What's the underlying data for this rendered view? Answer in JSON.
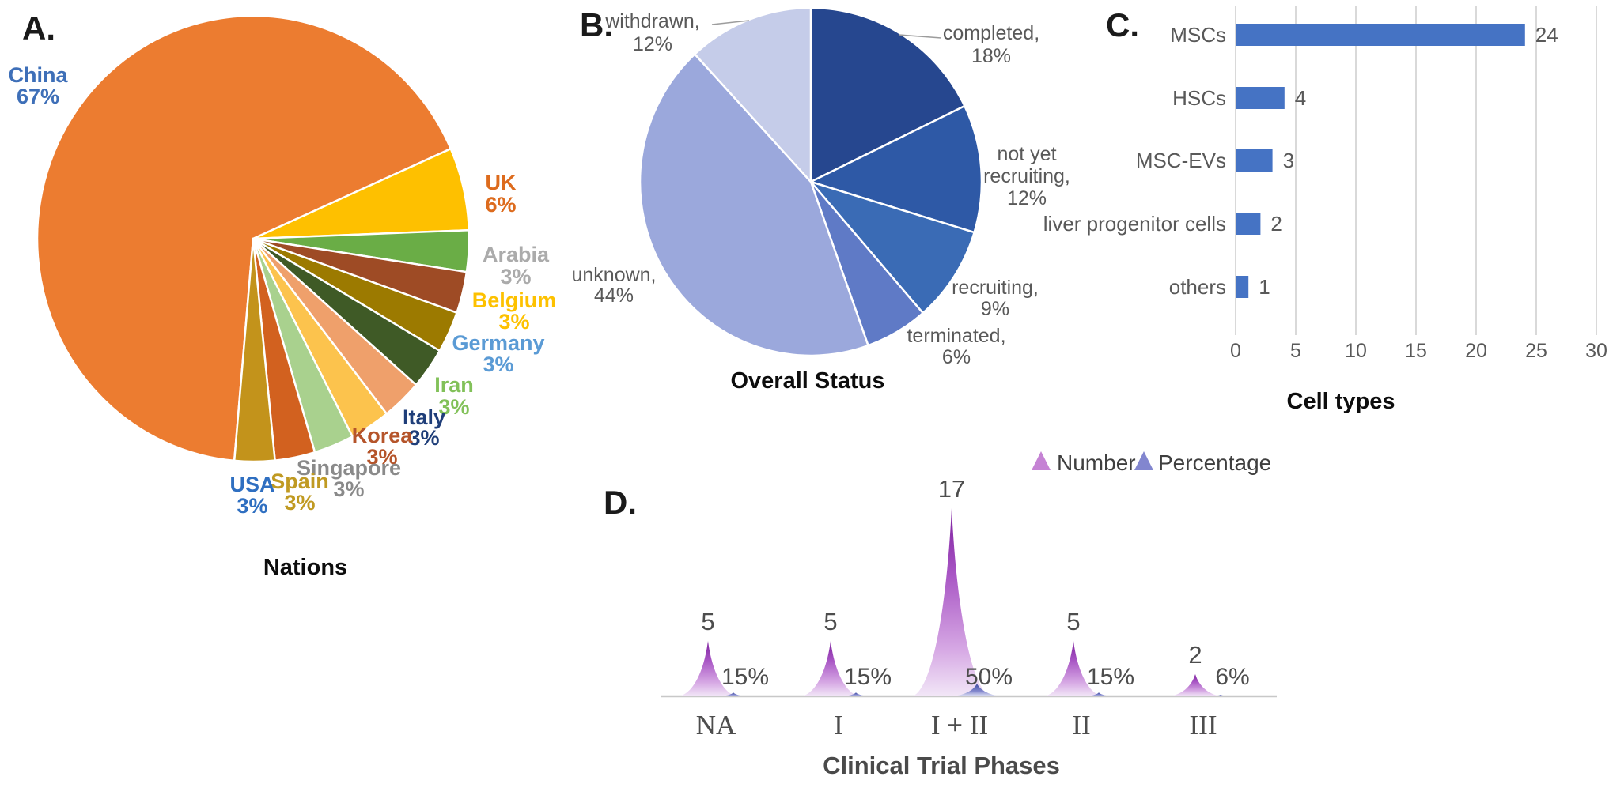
{
  "panels": {
    "a": "A.",
    "b": "B.",
    "c": "C.",
    "d": "D."
  },
  "chart_data": [
    {
      "id": "nations_pie",
      "type": "pie",
      "title": "Nations",
      "start_angle_deg": 185,
      "legend_position": "around-slices",
      "slices": [
        {
          "label": "China",
          "value": 67,
          "pct_text": "67%",
          "color": "#EC7C30",
          "label_color": "#3E6FB8"
        },
        {
          "label": "UK",
          "value": 6,
          "pct_text": "6%",
          "color": "#FEC000",
          "label_color": "#DD6B1D"
        },
        {
          "label": "Arabia",
          "value": 3,
          "pct_text": "3%",
          "color": "#6AAD46",
          "label_color": "#ABABAB"
        },
        {
          "label": "Belgium",
          "value": 3,
          "pct_text": "3%",
          "color": "#9E4B25",
          "label_color": "#FDC100"
        },
        {
          "label": "Germany",
          "value": 3,
          "pct_text": "3%",
          "color": "#9C7A00",
          "label_color": "#5B9BD5"
        },
        {
          "label": "Iran",
          "value": 3,
          "pct_text": "3%",
          "color": "#3F5A26",
          "label_color": "#82C159"
        },
        {
          "label": "Italy",
          "value": 3,
          "pct_text": "3%",
          "color": "#EFA06B",
          "label_color": "#1F3E79"
        },
        {
          "label": "Korea",
          "value": 3,
          "pct_text": "3%",
          "color": "#FCC34D",
          "label_color": "#B5542A"
        },
        {
          "label": "Singapore",
          "value": 3,
          "pct_text": "3%",
          "color": "#A9D18E",
          "label_color": "#8A8A8A"
        },
        {
          "label": "Spain",
          "value": 3,
          "pct_text": "3%",
          "color": "#D2611F",
          "label_color": "#C09A22"
        },
        {
          "label": "USA",
          "value": 3,
          "pct_text": "3%",
          "color": "#C3931B",
          "label_color": "#2F6FC1"
        }
      ]
    },
    {
      "id": "overall_status_pie",
      "type": "pie",
      "title": "Overall Status",
      "start_angle_deg": 0,
      "slices": [
        {
          "label": "completed",
          "value": 18,
          "pct_text": "18%",
          "color": "#26478F",
          "display_lines": [
            "completed,",
            "18%"
          ]
        },
        {
          "label": "not yet recruiting",
          "value": 12,
          "pct_text": "12%",
          "color": "#2E59A6",
          "display_lines": [
            "not yet",
            "recruiting,",
            "12%"
          ]
        },
        {
          "label": "recruiting",
          "value": 9,
          "pct_text": "9%",
          "color": "#3A6BB5",
          "display_lines": [
            "recruiting,",
            "9%"
          ]
        },
        {
          "label": "terminated",
          "value": 6,
          "pct_text": "6%",
          "color": "#5F7AC6",
          "display_lines": [
            "terminated,",
            "6%"
          ]
        },
        {
          "label": "unknown",
          "value": 44,
          "pct_text": "44%",
          "color": "#9BA8DC",
          "display_lines": [
            "unknown,",
            "44%"
          ]
        },
        {
          "label": "withdrawn",
          "value": 12,
          "pct_text": "12%",
          "color": "#C5CCE9",
          "display_lines": [
            "withdrawn,",
            "12%"
          ]
        }
      ]
    },
    {
      "id": "cell_types_bar",
      "type": "bar",
      "title": "Cell types",
      "orientation": "horizontal",
      "categories": [
        "MSCs",
        "HSCs",
        "MSC-EVs",
        "liver progenitor cells",
        "others"
      ],
      "values": [
        24,
        4,
        3,
        2,
        1
      ],
      "value_labels": [
        "24",
        "4",
        "3",
        "2",
        "1"
      ],
      "bar_color": "#4573C4",
      "xlim": [
        0,
        30
      ],
      "x_ticks": [
        "0",
        "5",
        "10",
        "15",
        "20",
        "25",
        "30"
      ],
      "grid": "vertical-light-gray"
    },
    {
      "id": "clinical_trial_phases",
      "type": "area",
      "title": "Clinical Trial Phases",
      "categories": [
        "NA",
        "I",
        "I + II",
        "II",
        "III"
      ],
      "series": [
        {
          "name": "Number",
          "values": [
            5,
            5,
            17,
            5,
            2
          ],
          "value_labels": [
            "5",
            "5",
            "17",
            "5",
            "2"
          ],
          "color": "#A64FC0"
        },
        {
          "name": "Percentage",
          "values": [
            15,
            15,
            50,
            15,
            6
          ],
          "value_labels": [
            "15%",
            "15%",
            "50%",
            "15%",
            "6%"
          ],
          "color": "#8286CF"
        }
      ],
      "legend_position": "top-right"
    }
  ]
}
